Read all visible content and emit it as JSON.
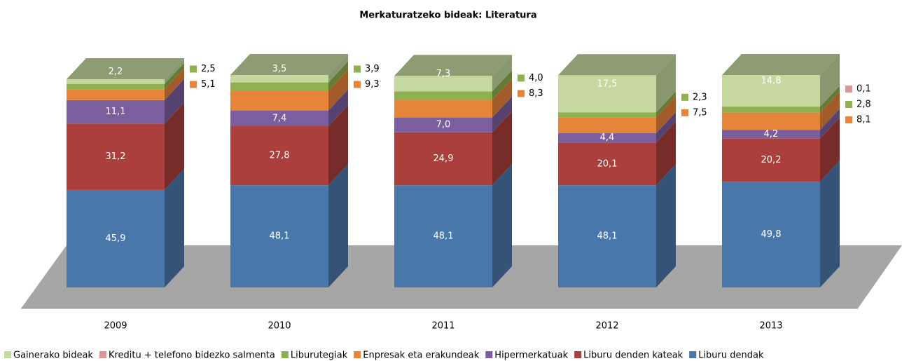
{
  "chart_data": {
    "type": "bar3d_stacked",
    "title": "Merkaturatzeko bideak: Literatura",
    "categories": [
      "2009",
      "2010",
      "2011",
      "2012",
      "2013"
    ],
    "series": [
      {
        "name": "Liburu dendak",
        "color": "#4a77aa",
        "values": [
          45.9,
          48.1,
          48.1,
          48.1,
          49.8
        ],
        "value_labels": [
          "45,9",
          "48,1",
          "48,1",
          "48,1",
          "49,8"
        ]
      },
      {
        "name": "Liburu denden kateak",
        "color": "#aa3f3c",
        "values": [
          31.2,
          27.8,
          24.9,
          20.1,
          20.2
        ],
        "value_labels": [
          "31,2",
          "27,8",
          "24,9",
          "20,1",
          "20,2"
        ]
      },
      {
        "name": "Hipermerkatuak",
        "color": "#7b5e9d",
        "values": [
          11.1,
          7.4,
          7.0,
          4.4,
          4.2
        ],
        "value_labels": [
          "11,1",
          "7,4",
          "7,0",
          "4,4",
          "4,2"
        ]
      },
      {
        "name": "Enpresak eta erakundeak",
        "color": "#e6843a",
        "values": [
          5.1,
          9.3,
          8.3,
          7.5,
          8.1
        ],
        "value_labels": [
          "5,1",
          "9,3",
          "8,3",
          "7,5",
          "8,1"
        ]
      },
      {
        "name": "Liburutegiak",
        "color": "#8fb04e",
        "values": [
          2.5,
          3.9,
          4.0,
          2.3,
          2.8
        ],
        "value_labels": [
          "2,5",
          "3,9",
          "4,0",
          "2,3",
          "2,8"
        ]
      },
      {
        "name": "Kreditu + telefono bidezko salmenta",
        "color": "#d99694",
        "values": [
          null,
          null,
          null,
          null,
          0.1
        ],
        "value_labels": [
          null,
          null,
          null,
          null,
          "0,1"
        ]
      },
      {
        "name": "Gainerako bideak",
        "color": "#c4d8a0",
        "values": [
          2.2,
          3.5,
          7.3,
          17.5,
          14.8
        ],
        "value_labels": [
          "2,2",
          "3,5",
          "7,3",
          "17,5",
          "14,8"
        ]
      }
    ]
  }
}
